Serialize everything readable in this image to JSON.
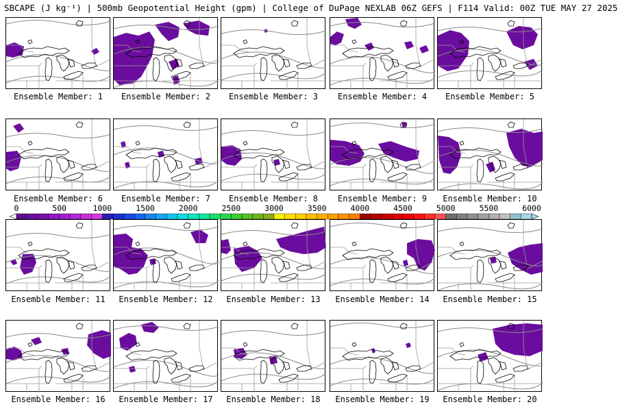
{
  "title": "SBCAPE (J kg⁻¹) | 500mb Geopotential Height (gpm) | College of DuPage NEXLAB 06Z GEFS | F114 Valid: 00Z TUE MAY 27 2025",
  "members": [
    {
      "label": "Ensemble Member: 1"
    },
    {
      "label": "Ensemble Member: 2"
    },
    {
      "label": "Ensemble Member: 3"
    },
    {
      "label": "Ensemble Member: 4"
    },
    {
      "label": "Ensemble Member: 5"
    },
    {
      "label": "Ensemble Member: 6"
    },
    {
      "label": "Ensemble Member: 7"
    },
    {
      "label": "Ensemble Member: 8"
    },
    {
      "label": "Ensemble Member: 9"
    },
    {
      "label": "Ensemble Member: 10"
    },
    {
      "label": "Ensemble Member: 11"
    },
    {
      "label": "Ensemble Member: 12"
    },
    {
      "label": "Ensemble Member: 13"
    },
    {
      "label": "Ensemble Member: 14"
    },
    {
      "label": "Ensemble Member: 15"
    },
    {
      "label": "Ensemble Member: 16"
    },
    {
      "label": "Ensemble Member: 17"
    },
    {
      "label": "Ensemble Member: 18"
    },
    {
      "label": "Ensemble Member: 19"
    },
    {
      "label": "Ensemble Member: 20"
    }
  ],
  "colorbar": {
    "min": 0,
    "max": 6000,
    "labels": [
      "0",
      "500",
      "1000",
      "1500",
      "2000",
      "2500",
      "3000",
      "3500",
      "4000",
      "4500",
      "5000",
      "5500",
      "6000"
    ],
    "colors": [
      "#5a0f8c",
      "#6a0d9e",
      "#7b12b0",
      "#8d1bc2",
      "#a020d0",
      "#b428d8",
      "#c830dc",
      "#d838e0",
      "#2b1fb0",
      "#2030d0",
      "#1848e6",
      "#1a64f0",
      "#1a86f2",
      "#18a6f2",
      "#14c4ee",
      "#10dce6",
      "#10e6c0",
      "#14e69a",
      "#1ae070",
      "#28d84c",
      "#3ccc34",
      "#54c028",
      "#70b41e",
      "#8cae18",
      "#fff200",
      "#ffe000",
      "#ffd000",
      "#ffc000",
      "#ffb000",
      "#ffa000",
      "#ff9000",
      "#ff8000",
      "#a00000",
      "#b40000",
      "#c80000",
      "#dc0000",
      "#f00000",
      "#ff1010",
      "#ff3030",
      "#ff5050",
      "#707070",
      "#808080",
      "#909090",
      "#a0a0a0",
      "#b0b0b0",
      "#c0c0c0",
      "#8ec0d0",
      "#a8d8e4"
    ]
  }
}
